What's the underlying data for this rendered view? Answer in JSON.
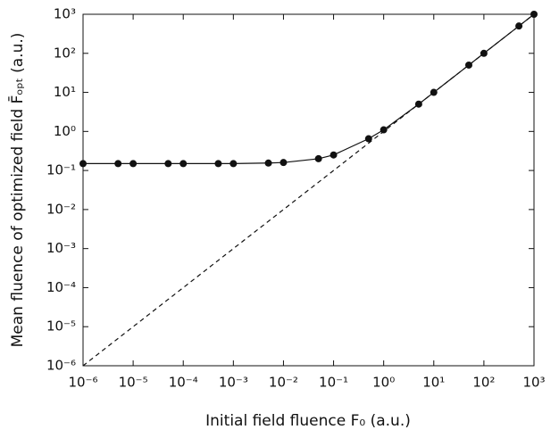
{
  "chart_data": {
    "type": "line",
    "xlabel": "Initial field fluence F₀ (a.u.)",
    "ylabel": "Mean fluence of optimized field F̄ₒₚₜ (a.u.)",
    "xscale": "log",
    "yscale": "log",
    "xlim": [
      1e-06,
      1000
    ],
    "ylim": [
      1e-06,
      1000
    ],
    "xticks": [
      {
        "value": 1e-06,
        "label": "10⁻⁶"
      },
      {
        "value": 1e-05,
        "label": "10⁻⁵"
      },
      {
        "value": 0.0001,
        "label": "10⁻⁴"
      },
      {
        "value": 0.001,
        "label": "10⁻³"
      },
      {
        "value": 0.01,
        "label": "10⁻²"
      },
      {
        "value": 0.1,
        "label": "10⁻¹"
      },
      {
        "value": 1,
        "label": "10⁰"
      },
      {
        "value": 10,
        "label": "10¹"
      },
      {
        "value": 100,
        "label": "10²"
      },
      {
        "value": 1000,
        "label": "10³"
      }
    ],
    "yticks": [
      {
        "value": 1e-06,
        "label": "10⁻⁶"
      },
      {
        "value": 1e-05,
        "label": "10⁻⁵"
      },
      {
        "value": 0.0001,
        "label": "10⁻⁴"
      },
      {
        "value": 0.001,
        "label": "10⁻³"
      },
      {
        "value": 0.01,
        "label": "10⁻²"
      },
      {
        "value": 0.1,
        "label": "10⁻¹"
      },
      {
        "value": 1,
        "label": "10⁰"
      },
      {
        "value": 10,
        "label": "10¹"
      },
      {
        "value": 100,
        "label": "10²"
      },
      {
        "value": 1000,
        "label": "10³"
      }
    ],
    "series": [
      {
        "color": "#111111",
        "style": "solid",
        "markers": true,
        "x": [
          1e-06,
          5e-06,
          1e-05,
          5e-05,
          0.0001,
          0.0005,
          0.001,
          0.005,
          0.01,
          0.05,
          0.1,
          0.5,
          1,
          5,
          10,
          50,
          100,
          500,
          1000
        ],
        "values": [
          0.15,
          0.15,
          0.15,
          0.15,
          0.15,
          0.15,
          0.15,
          0.155,
          0.16,
          0.2,
          0.25,
          0.65,
          1.1,
          5,
          10,
          50,
          100,
          500,
          1000
        ]
      },
      {
        "color": "#111111",
        "style": "dashed",
        "markers": false,
        "x": [
          1e-06,
          1000
        ],
        "values": [
          1e-06,
          1000
        ]
      }
    ]
  }
}
